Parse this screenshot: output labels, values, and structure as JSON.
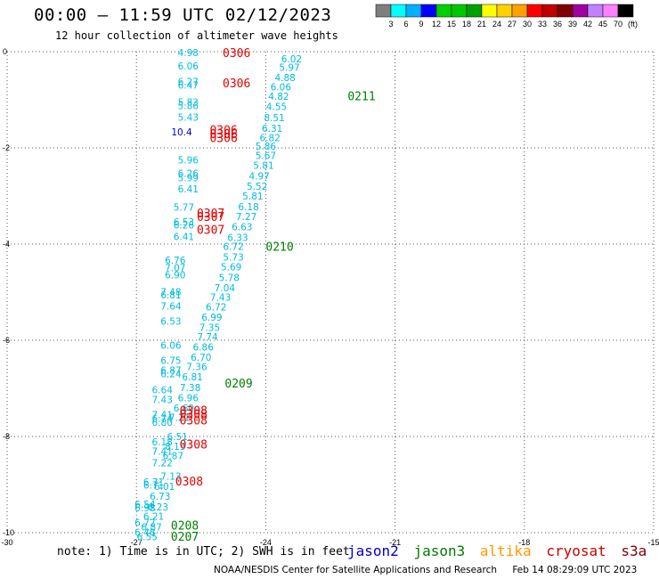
{
  "header": {
    "title": "00:00 — 11:59 UTC 02/12/2023",
    "subtitle": "12 hour collection of altimeter wave heights"
  },
  "legend": {
    "unit": "(ft)",
    "colors": [
      "#7f7f7f",
      "#00ffff",
      "#00b0ff",
      "#0000ff",
      "#00d000",
      "#00c800",
      "#00a000",
      "#ffff00",
      "#ffd000",
      "#ffa000",
      "#ff0000",
      "#c00000",
      "#800000",
      "#a000a0",
      "#c080ff",
      "#ff80ff",
      "#000000"
    ],
    "labels": [
      "3",
      "6",
      "9",
      "12",
      "15",
      "18",
      "21",
      "24",
      "27",
      "30",
      "33",
      "36",
      "39",
      "42",
      "45",
      "70"
    ]
  },
  "note": "note: 1) Time is in UTC; 2) SWH is in feet",
  "satellites": [
    {
      "name": "jason2",
      "color": "#0000cc"
    },
    {
      "name": "jason3",
      "color": "#007a00"
    },
    {
      "name": "altika",
      "color": "#ff9900"
    },
    {
      "name": "cryosat",
      "color": "#cc0000"
    },
    {
      "name": "s3a",
      "color": "#800000"
    }
  ],
  "credit": {
    "source": "NOAA/NESDIS Center for Satellite Applications and Research",
    "timestamp": "Feb 14 08:29:09 UTC 2023"
  },
  "chart_data": {
    "type": "scatter",
    "xlim": [
      -30,
      -15
    ],
    "ylim": [
      -10,
      0
    ],
    "x_ticks": [
      "-30",
      "-27",
      "-24",
      "-21",
      "-18",
      "-15"
    ],
    "y_ticks": [
      "0",
      "-2",
      "-4",
      "-6",
      "-8",
      "-10"
    ],
    "grid": true,
    "series": [
      {
        "name": "jason3",
        "color": "#00bbdd",
        "points": [
          {
            "x": -23.4,
            "y": -0.15,
            "label": "6.02"
          },
          {
            "x": -23.45,
            "y": -0.32,
            "label": "5.97"
          },
          {
            "x": -23.55,
            "y": -0.54,
            "label": "4.88"
          },
          {
            "x": -23.65,
            "y": -0.73,
            "label": "6.06"
          },
          {
            "x": -23.7,
            "y": -0.93,
            "label": "4.82"
          },
          {
            "x": -23.75,
            "y": -1.14,
            "label": "4.55"
          },
          {
            "x": -23.8,
            "y": -1.37,
            "label": "8.51"
          },
          {
            "x": -23.85,
            "y": -1.59,
            "label": "6.31"
          },
          {
            "x": -23.9,
            "y": -1.79,
            "label": "6.82"
          },
          {
            "x": -24.0,
            "y": -1.96,
            "label": "5.86"
          },
          {
            "x": -24.0,
            "y": -2.16,
            "label": "5.67"
          },
          {
            "x": -24.05,
            "y": -2.36,
            "label": "5.81"
          },
          {
            "x": -24.15,
            "y": -2.58,
            "label": "4.97"
          },
          {
            "x": -24.2,
            "y": -2.8,
            "label": "5.52"
          },
          {
            "x": -24.3,
            "y": -3.0,
            "label": "5.81"
          },
          {
            "x": -24.4,
            "y": -3.22,
            "label": "6.18"
          },
          {
            "x": -24.45,
            "y": -3.43,
            "label": "7.27"
          },
          {
            "x": -24.55,
            "y": -3.64,
            "label": "6.63"
          },
          {
            "x": -24.65,
            "y": -3.86,
            "label": "6.33"
          },
          {
            "x": -24.75,
            "y": -4.05,
            "label": "6.72"
          },
          {
            "x": -24.75,
            "y": -4.27,
            "label": "5.73"
          },
          {
            "x": -24.8,
            "y": -4.47,
            "label": "5.69"
          },
          {
            "x": -24.85,
            "y": -4.69,
            "label": "5.78"
          },
          {
            "x": -24.95,
            "y": -4.91,
            "label": "7.04"
          },
          {
            "x": -25.05,
            "y": -5.1,
            "label": "7.43"
          },
          {
            "x": -25.15,
            "y": -5.31,
            "label": "6.72"
          },
          {
            "x": -25.25,
            "y": -5.52,
            "label": "6.99"
          },
          {
            "x": -25.3,
            "y": -5.73,
            "label": "7.35"
          },
          {
            "x": -25.35,
            "y": -5.93,
            "label": "7.74"
          },
          {
            "x": -25.45,
            "y": -6.14,
            "label": "6.86"
          },
          {
            "x": -25.5,
            "y": -6.35,
            "label": "6.70"
          },
          {
            "x": -25.6,
            "y": -6.55,
            "label": "7.36"
          },
          {
            "x": -25.7,
            "y": -6.76,
            "label": "6.81"
          },
          {
            "x": -25.75,
            "y": -6.98,
            "label": "7.38"
          },
          {
            "x": -25.8,
            "y": -7.19,
            "label": "6.96"
          },
          {
            "x": -25.9,
            "y": -7.41,
            "label": "6.60"
          },
          {
            "x": -26.0,
            "y": -7.6,
            "label": "7.21"
          },
          {
            "x": -26.05,
            "y": -8.0,
            "label": "6.51"
          },
          {
            "x": -26.1,
            "y": -8.2,
            "label": "8.13"
          },
          {
            "x": -26.15,
            "y": -8.4,
            "label": "6.87"
          },
          {
            "x": -26.2,
            "y": -8.82,
            "label": "7.13"
          },
          {
            "x": -26.35,
            "y": -9.04,
            "label": "6.01"
          },
          {
            "x": -26.45,
            "y": -9.24,
            "label": "6.73"
          },
          {
            "x": -26.5,
            "y": -9.46,
            "label": "6.23"
          },
          {
            "x": -26.6,
            "y": -9.66,
            "label": "6.21"
          },
          {
            "x": -26.65,
            "y": -9.88,
            "label": "6.87"
          },
          {
            "x": -26.75,
            "y": -10.08,
            "label": "6.55"
          },
          {
            "x": -25.8,
            "y": -0.02,
            "label": "4.98"
          },
          {
            "x": -25.8,
            "y": -0.3,
            "label": "6.06"
          },
          {
            "x": -25.8,
            "y": -0.62,
            "label": "6.27"
          },
          {
            "x": -25.8,
            "y": -0.69,
            "label": "6.47"
          },
          {
            "x": -25.8,
            "y": -1.05,
            "label": "5.83"
          },
          {
            "x": -25.8,
            "y": -1.12,
            "label": "5.86"
          },
          {
            "x": -25.8,
            "y": -1.36,
            "label": "5.43"
          },
          {
            "x": -25.8,
            "y": -2.25,
            "label": "5.96"
          },
          {
            "x": -25.8,
            "y": -2.53,
            "label": "6.26"
          },
          {
            "x": -25.8,
            "y": -2.62,
            "label": "5.99"
          },
          {
            "x": -25.8,
            "y": -2.85,
            "label": "6.41"
          },
          {
            "x": -25.9,
            "y": -3.23,
            "label": "5.77"
          },
          {
            "x": -25.9,
            "y": -3.54,
            "label": "6.53"
          },
          {
            "x": -25.9,
            "y": -3.6,
            "label": "6.26"
          },
          {
            "x": -25.9,
            "y": -3.84,
            "label": "6.41"
          },
          {
            "x": -26.1,
            "y": -4.33,
            "label": "6.76"
          },
          {
            "x": -26.1,
            "y": -4.49,
            "label": "7.07"
          },
          {
            "x": -26.1,
            "y": -4.64,
            "label": "6.90"
          },
          {
            "x": -26.2,
            "y": -4.99,
            "label": "7.48"
          },
          {
            "x": -26.2,
            "y": -5.06,
            "label": "6.81"
          },
          {
            "x": -26.2,
            "y": -5.29,
            "label": "7.64"
          },
          {
            "x": -26.2,
            "y": -5.6,
            "label": "6.53"
          },
          {
            "x": -26.2,
            "y": -6.1,
            "label": "6.06"
          },
          {
            "x": -26.2,
            "y": -6.42,
            "label": "6.75"
          },
          {
            "x": -26.2,
            "y": -6.62,
            "label": "6.87"
          },
          {
            "x": -26.2,
            "y": -6.69,
            "label": "6.24"
          },
          {
            "x": -26.4,
            "y": -7.03,
            "label": "6.64"
          },
          {
            "x": -26.4,
            "y": -7.23,
            "label": "7.43"
          },
          {
            "x": -26.4,
            "y": -7.55,
            "label": "7.41"
          },
          {
            "x": -26.4,
            "y": -7.62,
            "label": "6.74"
          },
          {
            "x": -26.4,
            "y": -7.7,
            "label": "6.80"
          },
          {
            "x": -26.4,
            "y": -8.11,
            "label": "6.18"
          },
          {
            "x": -26.4,
            "y": -8.31,
            "label": "7.41"
          },
          {
            "x": -26.4,
            "y": -8.55,
            "label": "7.22"
          },
          {
            "x": -26.6,
            "y": -8.94,
            "label": "6.71"
          },
          {
            "x": -26.6,
            "y": -9.01,
            "label": "6.71"
          },
          {
            "x": -26.8,
            "y": -9.41,
            "label": "6.54"
          },
          {
            "x": -26.8,
            "y": -9.48,
            "label": "6.98"
          },
          {
            "x": -26.8,
            "y": -9.79,
            "label": "6.72"
          },
          {
            "x": -26.8,
            "y": -9.99,
            "label": "6.48"
          }
        ]
      },
      {
        "name": "jason2",
        "color": "#0000cc",
        "points": [
          {
            "x": -25.95,
            "y": -1.67,
            "label": "10.4"
          }
        ]
      }
    ],
    "time_labels": [
      {
        "x": -25.0,
        "y": -0.02,
        "label": "0306",
        "color": "#e60000"
      },
      {
        "x": -25.0,
        "y": -0.65,
        "label": "0306",
        "color": "#e60000"
      },
      {
        "x": -25.3,
        "y": -1.62,
        "label": "0306",
        "color": "#e60000"
      },
      {
        "x": -25.3,
        "y": -1.7,
        "label": "0306",
        "color": "#e60000"
      },
      {
        "x": -25.3,
        "y": -1.79,
        "label": "0306",
        "color": "#e60000"
      },
      {
        "x": -25.6,
        "y": -3.35,
        "label": "0307",
        "color": "#e60000"
      },
      {
        "x": -25.6,
        "y": -3.43,
        "label": "0307",
        "color": "#e60000"
      },
      {
        "x": -25.6,
        "y": -3.69,
        "label": "0307",
        "color": "#e60000"
      },
      {
        "x": -26.0,
        "y": -7.45,
        "label": "0308",
        "color": "#e60000"
      },
      {
        "x": -26.0,
        "y": -7.53,
        "label": "0308",
        "color": "#e60000"
      },
      {
        "x": -26.0,
        "y": -7.66,
        "label": "0308",
        "color": "#e60000"
      },
      {
        "x": -26.0,
        "y": -8.16,
        "label": "0308",
        "color": "#e60000"
      },
      {
        "x": -26.1,
        "y": -8.93,
        "label": "0308",
        "color": "#e60000"
      },
      {
        "x": -22.1,
        "y": -0.92,
        "label": "0211",
        "color": "#008000"
      },
      {
        "x": -24.0,
        "y": -4.05,
        "label": "0210",
        "color": "#008000"
      },
      {
        "x": -24.95,
        "y": -6.89,
        "label": "0209",
        "color": "#008000"
      },
      {
        "x": -26.2,
        "y": -9.84,
        "label": "0208",
        "color": "#008000"
      },
      {
        "x": -26.2,
        "y": -10.07,
        "label": "0207",
        "color": "#008000"
      }
    ]
  }
}
